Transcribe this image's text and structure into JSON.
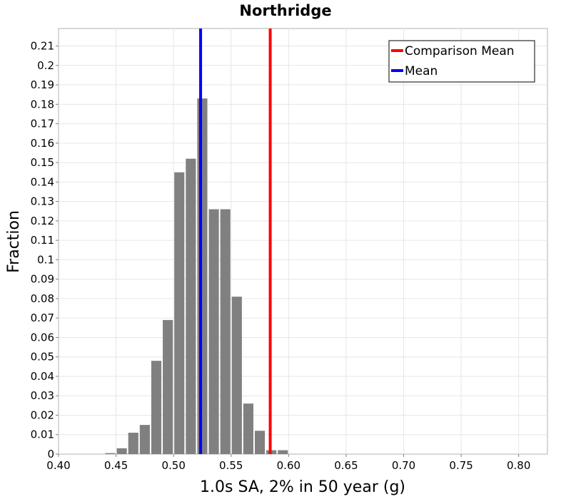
{
  "chart_data": {
    "type": "bar",
    "title": "Northridge",
    "xlabel": "1.0s SA, 2% in 50 year (g)",
    "ylabel": "Fraction",
    "xlim": [
      0.4,
      0.825
    ],
    "ylim": [
      0,
      0.219
    ],
    "xticks": [
      "0.40",
      "0.45",
      "0.50",
      "0.55",
      "0.60",
      "0.65",
      "0.70",
      "0.75",
      "0.80"
    ],
    "yticks": [
      "0",
      "0.01",
      "0.02",
      "0.03",
      "0.04",
      "0.05",
      "0.06",
      "0.07",
      "0.08",
      "0.09",
      "0.1",
      "0.11",
      "0.12",
      "0.13",
      "0.14",
      "0.15",
      "0.16",
      "0.17",
      "0.18",
      "0.19",
      "0.2",
      "0.21"
    ],
    "grid": true,
    "bar_color": "#808080",
    "bin_width": 0.01,
    "bins": [
      {
        "x": 0.445,
        "value": 0.0005
      },
      {
        "x": 0.455,
        "value": 0.003
      },
      {
        "x": 0.465,
        "value": 0.011
      },
      {
        "x": 0.475,
        "value": 0.015
      },
      {
        "x": 0.485,
        "value": 0.048
      },
      {
        "x": 0.495,
        "value": 0.069
      },
      {
        "x": 0.505,
        "value": 0.145
      },
      {
        "x": 0.515,
        "value": 0.152
      },
      {
        "x": 0.525,
        "value": 0.183
      },
      {
        "x": 0.535,
        "value": 0.126
      },
      {
        "x": 0.545,
        "value": 0.126
      },
      {
        "x": 0.555,
        "value": 0.081
      },
      {
        "x": 0.565,
        "value": 0.026
      },
      {
        "x": 0.575,
        "value": 0.012
      },
      {
        "x": 0.585,
        "value": 0.002
      },
      {
        "x": 0.595,
        "value": 0.002
      }
    ],
    "lines": [
      {
        "name": "Comparison Mean",
        "x": 0.584,
        "color": "#ff0000"
      },
      {
        "name": "Mean",
        "x": 0.5235,
        "color": "#0000ff"
      }
    ],
    "legend": {
      "placement": "top-right",
      "entries": [
        {
          "label": "Comparison Mean",
          "color": "#ff0000"
        },
        {
          "label": "Mean",
          "color": "#0000ff"
        }
      ]
    }
  }
}
